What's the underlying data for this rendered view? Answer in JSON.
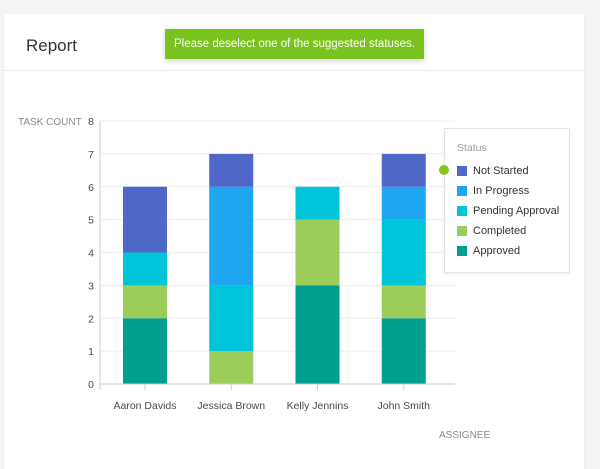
{
  "header": {
    "title": "Report",
    "notice": "Please deselect one of the suggested statuses."
  },
  "colors": {
    "toast": "#7ac31e",
    "legend_dot": "#86c51f"
  },
  "chart_data": {
    "type": "bar",
    "stacked": true,
    "categories": [
      "Aaron Davids",
      "Jessica Brown",
      "Kelly Jennins",
      "John Smith"
    ],
    "series": [
      {
        "name": "Approved",
        "color": "#009e8e",
        "values": [
          2,
          0,
          3,
          2
        ]
      },
      {
        "name": "Completed",
        "color": "#9ccc5a",
        "values": [
          1,
          1,
          2,
          1
        ]
      },
      {
        "name": "Pending Approval",
        "color": "#00c4da",
        "values": [
          1,
          2,
          1,
          2
        ]
      },
      {
        "name": "In Progress",
        "color": "#1ea6f0",
        "values": [
          0,
          3,
          0,
          1
        ]
      },
      {
        "name": "Not Started",
        "color": "#4f67c6",
        "values": [
          2,
          1,
          0,
          1
        ]
      }
    ],
    "xlabel": "ASSIGNEE",
    "ylabel": "TASK COUNT",
    "ylim": [
      0,
      8
    ],
    "yticks": [
      0,
      1,
      2,
      3,
      4,
      5,
      6,
      7,
      8
    ],
    "grid": true,
    "legend": {
      "title": "Status",
      "placement": "right",
      "order": [
        "Not Started",
        "In Progress",
        "Pending Approval",
        "Completed",
        "Approved"
      ]
    }
  }
}
